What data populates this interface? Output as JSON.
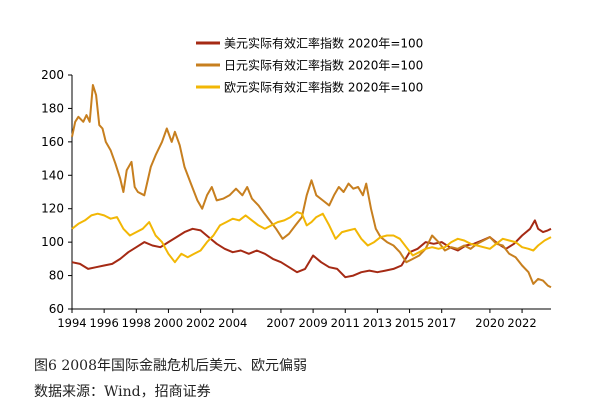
{
  "figure": {
    "title": "图6   2008年国际金融危机后美元、欧元偏弱",
    "source": "数据来源：Wind，招商证券"
  },
  "chart_data": {
    "type": "line",
    "x_range": [
      1994,
      2023.8
    ],
    "ylim": [
      60,
      200
    ],
    "yticks": [
      60,
      80,
      100,
      120,
      140,
      160,
      180,
      200
    ],
    "xticks": [
      1994,
      1996,
      1998,
      2000,
      2002,
      2004,
      2007,
      2009,
      2011,
      2013,
      2015,
      2017,
      2020,
      2022
    ],
    "grid": false,
    "legend_position": "top-center",
    "series": [
      {
        "name": "美元实际有效汇率指数 2020年=100",
        "color": "#A52A14",
        "points": [
          [
            1994.0,
            88
          ],
          [
            1994.5,
            87
          ],
          [
            1995.0,
            84
          ],
          [
            1995.5,
            85
          ],
          [
            1996.0,
            86
          ],
          [
            1996.5,
            87
          ],
          [
            1997.0,
            90
          ],
          [
            1997.5,
            94
          ],
          [
            1998.0,
            97
          ],
          [
            1998.5,
            100
          ],
          [
            1999.0,
            98
          ],
          [
            1999.5,
            97
          ],
          [
            2000.0,
            100
          ],
          [
            2000.5,
            103
          ],
          [
            2001.0,
            106
          ],
          [
            2001.5,
            108
          ],
          [
            2002.0,
            107
          ],
          [
            2002.5,
            103
          ],
          [
            2003.0,
            99
          ],
          [
            2003.5,
            96
          ],
          [
            2004.0,
            94
          ],
          [
            2004.5,
            95
          ],
          [
            2005.0,
            93
          ],
          [
            2005.5,
            95
          ],
          [
            2006.0,
            93
          ],
          [
            2006.5,
            90
          ],
          [
            2007.0,
            88
          ],
          [
            2007.5,
            85
          ],
          [
            2008.0,
            82
          ],
          [
            2008.5,
            84
          ],
          [
            2009.0,
            92
          ],
          [
            2009.5,
            88
          ],
          [
            2010.0,
            85
          ],
          [
            2010.5,
            84
          ],
          [
            2011.0,
            79
          ],
          [
            2011.5,
            80
          ],
          [
            2012.0,
            82
          ],
          [
            2012.5,
            83
          ],
          [
            2013.0,
            82
          ],
          [
            2013.5,
            83
          ],
          [
            2014.0,
            84
          ],
          [
            2014.5,
            86
          ],
          [
            2015.0,
            94
          ],
          [
            2015.5,
            96
          ],
          [
            2016.0,
            100
          ],
          [
            2016.5,
            99
          ],
          [
            2017.0,
            100
          ],
          [
            2017.5,
            97
          ],
          [
            2018.0,
            95
          ],
          [
            2018.5,
            98
          ],
          [
            2019.0,
            99
          ],
          [
            2019.5,
            101
          ],
          [
            2020.0,
            103
          ],
          [
            2020.5,
            99
          ],
          [
            2021.0,
            96
          ],
          [
            2021.5,
            99
          ],
          [
            2022.0,
            104
          ],
          [
            2022.5,
            108
          ],
          [
            2022.8,
            113
          ],
          [
            2023.0,
            108
          ],
          [
            2023.3,
            106
          ],
          [
            2023.6,
            107
          ],
          [
            2023.8,
            108
          ]
        ]
      },
      {
        "name": "日元实际有效汇率指数 2020年=100",
        "color": "#C77F1F",
        "points": [
          [
            1994.0,
            163
          ],
          [
            1994.2,
            172
          ],
          [
            1994.4,
            175
          ],
          [
            1994.7,
            172
          ],
          [
            1994.9,
            176
          ],
          [
            1995.1,
            172
          ],
          [
            1995.3,
            194
          ],
          [
            1995.5,
            188
          ],
          [
            1995.7,
            170
          ],
          [
            1995.9,
            168
          ],
          [
            1996.1,
            160
          ],
          [
            1996.4,
            155
          ],
          [
            1996.7,
            147
          ],
          [
            1997.0,
            138
          ],
          [
            1997.2,
            130
          ],
          [
            1997.4,
            143
          ],
          [
            1997.7,
            148
          ],
          [
            1997.9,
            133
          ],
          [
            1998.1,
            130
          ],
          [
            1998.5,
            128
          ],
          [
            1998.9,
            145
          ],
          [
            1999.2,
            152
          ],
          [
            1999.6,
            160
          ],
          [
            1999.9,
            168
          ],
          [
            2000.2,
            160
          ],
          [
            2000.4,
            166
          ],
          [
            2000.7,
            158
          ],
          [
            2001.0,
            145
          ],
          [
            2001.4,
            135
          ],
          [
            2001.8,
            125
          ],
          [
            2002.1,
            120
          ],
          [
            2002.4,
            128
          ],
          [
            2002.7,
            133
          ],
          [
            2003.0,
            125
          ],
          [
            2003.4,
            126
          ],
          [
            2003.8,
            128
          ],
          [
            2004.2,
            132
          ],
          [
            2004.6,
            128
          ],
          [
            2004.9,
            133
          ],
          [
            2005.2,
            126
          ],
          [
            2005.6,
            122
          ],
          [
            2005.9,
            118
          ],
          [
            2006.3,
            113
          ],
          [
            2006.7,
            108
          ],
          [
            2007.1,
            102
          ],
          [
            2007.5,
            105
          ],
          [
            2007.9,
            110
          ],
          [
            2008.3,
            115
          ],
          [
            2008.6,
            128
          ],
          [
            2008.9,
            137
          ],
          [
            2009.2,
            128
          ],
          [
            2009.6,
            125
          ],
          [
            2010.0,
            122
          ],
          [
            2010.3,
            128
          ],
          [
            2010.6,
            133
          ],
          [
            2010.9,
            130
          ],
          [
            2011.2,
            135
          ],
          [
            2011.5,
            132
          ],
          [
            2011.8,
            133
          ],
          [
            2012.1,
            128
          ],
          [
            2012.3,
            135
          ],
          [
            2012.6,
            120
          ],
          [
            2012.9,
            108
          ],
          [
            2013.2,
            103
          ],
          [
            2013.6,
            100
          ],
          [
            2014.0,
            98
          ],
          [
            2014.4,
            94
          ],
          [
            2014.8,
            88
          ],
          [
            2015.2,
            90
          ],
          [
            2015.6,
            92
          ],
          [
            2016.0,
            96
          ],
          [
            2016.4,
            104
          ],
          [
            2016.8,
            100
          ],
          [
            2017.2,
            95
          ],
          [
            2017.6,
            97
          ],
          [
            2018.0,
            96
          ],
          [
            2018.4,
            98
          ],
          [
            2018.8,
            96
          ],
          [
            2019.2,
            99
          ],
          [
            2019.6,
            101
          ],
          [
            2020.0,
            103
          ],
          [
            2020.4,
            99
          ],
          [
            2020.8,
            98
          ],
          [
            2021.2,
            93
          ],
          [
            2021.6,
            91
          ],
          [
            2022.0,
            86
          ],
          [
            2022.4,
            82
          ],
          [
            2022.7,
            75
          ],
          [
            2023.0,
            78
          ],
          [
            2023.3,
            77
          ],
          [
            2023.6,
            74
          ],
          [
            2023.8,
            73
          ]
        ]
      },
      {
        "name": "欧元实际有效汇率指数 2020年=100",
        "color": "#F2B705",
        "points": [
          [
            1994.0,
            108
          ],
          [
            1994.4,
            111
          ],
          [
            1994.8,
            113
          ],
          [
            1995.2,
            116
          ],
          [
            1995.6,
            117
          ],
          [
            1996.0,
            116
          ],
          [
            1996.4,
            114
          ],
          [
            1996.8,
            115
          ],
          [
            1997.2,
            108
          ],
          [
            1997.6,
            104
          ],
          [
            1998.0,
            106
          ],
          [
            1998.4,
            108
          ],
          [
            1998.8,
            112
          ],
          [
            1999.2,
            104
          ],
          [
            1999.6,
            100
          ],
          [
            2000.0,
            93
          ],
          [
            2000.4,
            88
          ],
          [
            2000.8,
            93
          ],
          [
            2001.2,
            91
          ],
          [
            2001.6,
            93
          ],
          [
            2002.0,
            95
          ],
          [
            2002.4,
            100
          ],
          [
            2002.8,
            104
          ],
          [
            2003.2,
            110
          ],
          [
            2003.6,
            112
          ],
          [
            2004.0,
            114
          ],
          [
            2004.4,
            113
          ],
          [
            2004.8,
            116
          ],
          [
            2005.2,
            113
          ],
          [
            2005.6,
            110
          ],
          [
            2006.0,
            108
          ],
          [
            2006.4,
            110
          ],
          [
            2006.8,
            112
          ],
          [
            2007.2,
            113
          ],
          [
            2007.6,
            115
          ],
          [
            2008.0,
            118
          ],
          [
            2008.3,
            117
          ],
          [
            2008.6,
            110
          ],
          [
            2008.9,
            112
          ],
          [
            2009.2,
            115
          ],
          [
            2009.6,
            117
          ],
          [
            2010.0,
            110
          ],
          [
            2010.4,
            102
          ],
          [
            2010.8,
            106
          ],
          [
            2011.2,
            107
          ],
          [
            2011.6,
            108
          ],
          [
            2012.0,
            102
          ],
          [
            2012.4,
            98
          ],
          [
            2012.8,
            100
          ],
          [
            2013.2,
            103
          ],
          [
            2013.6,
            104
          ],
          [
            2014.0,
            104
          ],
          [
            2014.4,
            102
          ],
          [
            2014.8,
            97
          ],
          [
            2015.2,
            92
          ],
          [
            2015.6,
            94
          ],
          [
            2016.0,
            96
          ],
          [
            2016.4,
            97
          ],
          [
            2016.8,
            96
          ],
          [
            2017.2,
            97
          ],
          [
            2017.6,
            100
          ],
          [
            2018.0,
            102
          ],
          [
            2018.4,
            101
          ],
          [
            2018.8,
            99
          ],
          [
            2019.2,
            98
          ],
          [
            2019.6,
            97
          ],
          [
            2020.0,
            96
          ],
          [
            2020.4,
            99
          ],
          [
            2020.8,
            102
          ],
          [
            2021.2,
            101
          ],
          [
            2021.6,
            100
          ],
          [
            2022.0,
            97
          ],
          [
            2022.4,
            96
          ],
          [
            2022.7,
            95
          ],
          [
            2023.0,
            98
          ],
          [
            2023.4,
            101
          ],
          [
            2023.8,
            103
          ]
        ]
      }
    ]
  }
}
